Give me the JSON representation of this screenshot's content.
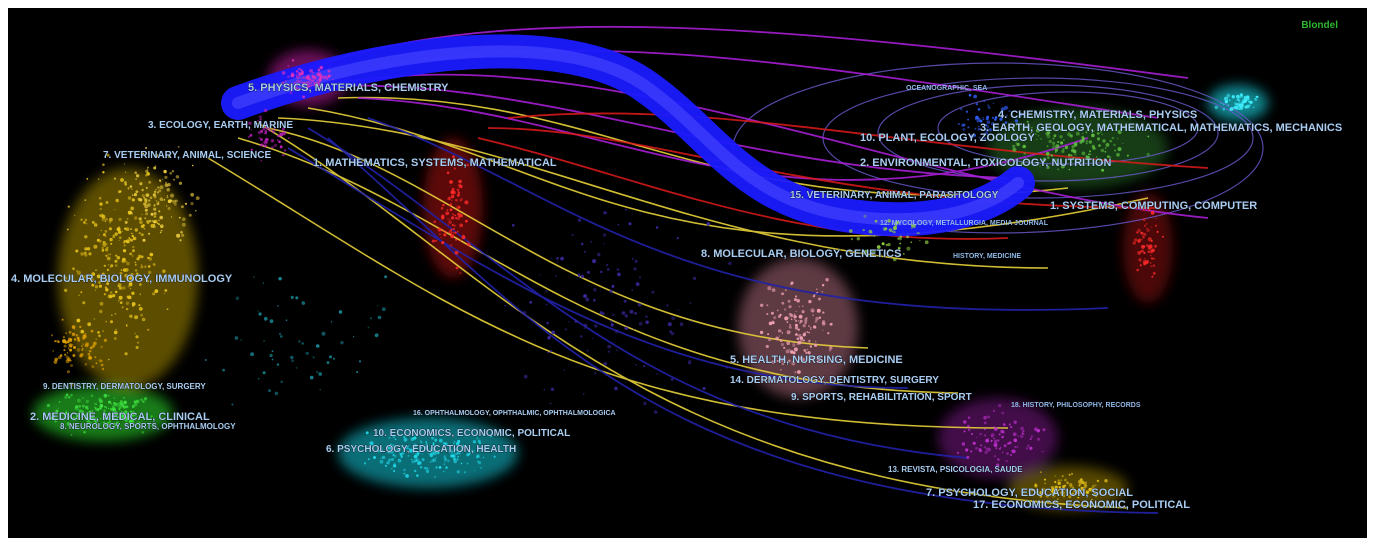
{
  "legend_text": "Blondel",
  "colors": {
    "background": "#000000",
    "label": "#a9cdf2",
    "legend": "#2db52d",
    "blue_flow": "#1a1aff",
    "yellow_flow": "#e8d23a",
    "purple_flow": "#a020f0",
    "red_flow": "#e01b1b"
  },
  "left_map_labels": [
    "5. PHYSICS, MATERIALS, CHEMISTRY",
    "3. ECOLOGY, EARTH, MARINE",
    "7. VETERINARY, ANIMAL, SCIENCE",
    "1. MATHEMATICS, SYSTEMS, MATHEMATICAL",
    "4. MOLECULAR, BIOLOGY, IMMUNOLOGY",
    "9. DENTISTRY, DERMATOLOGY, SURGERY",
    "2. MEDICINE, MEDICAL, CLINICAL",
    "8. NEUROLOGY, SPORTS, OPHTHALMOLOGY",
    "16. OPHTHALMOLOGY, OPHTHALMIC, OPHTHALMOLOGICA",
    "10. ECONOMICS, ECONOMIC, POLITICAL",
    "6. PSYCHOLOGY, EDUCATION, HEALTH"
  ],
  "right_map_labels": [
    "4. CHEMISTRY, MATERIALS, PHYSICS",
    "3. EARTH, GEOLOGY, MATHEMATICAL, MATHEMATICS, MECHANICS",
    "10. PLANT, ECOLOGY, ZOOLOGY",
    "2. ENVIRONMENTAL, TOXICOLOGY, NUTRITION",
    "15. VETERINARY, ANIMAL, PARASITOLOGY",
    "1. SYSTEMS, COMPUTING, COMPUTER",
    "12. MYCOLOGY, METALLURGIA, MEDIA JOURNAL",
    "8. MOLECULAR, BIOLOGY, GENETICS",
    "HISTORY, MEDICINE",
    "5. HEALTH, NURSING, MEDICINE",
    "14. DERMATOLOGY, DENTISTRY, SURGERY",
    "9. SPORTS, REHABILITATION, SPORT",
    "18. HISTORY, PHILOSOPHY, RECORDS",
    "13. REVISTA, PSICOLOGIA, SAUDE",
    "7. PSYCHOLOGY, EDUCATION, SOCIAL",
    "17. ECONOMICS, ECONOMIC, POLITICAL",
    "OCEANOGRAPHIC, SEA"
  ]
}
